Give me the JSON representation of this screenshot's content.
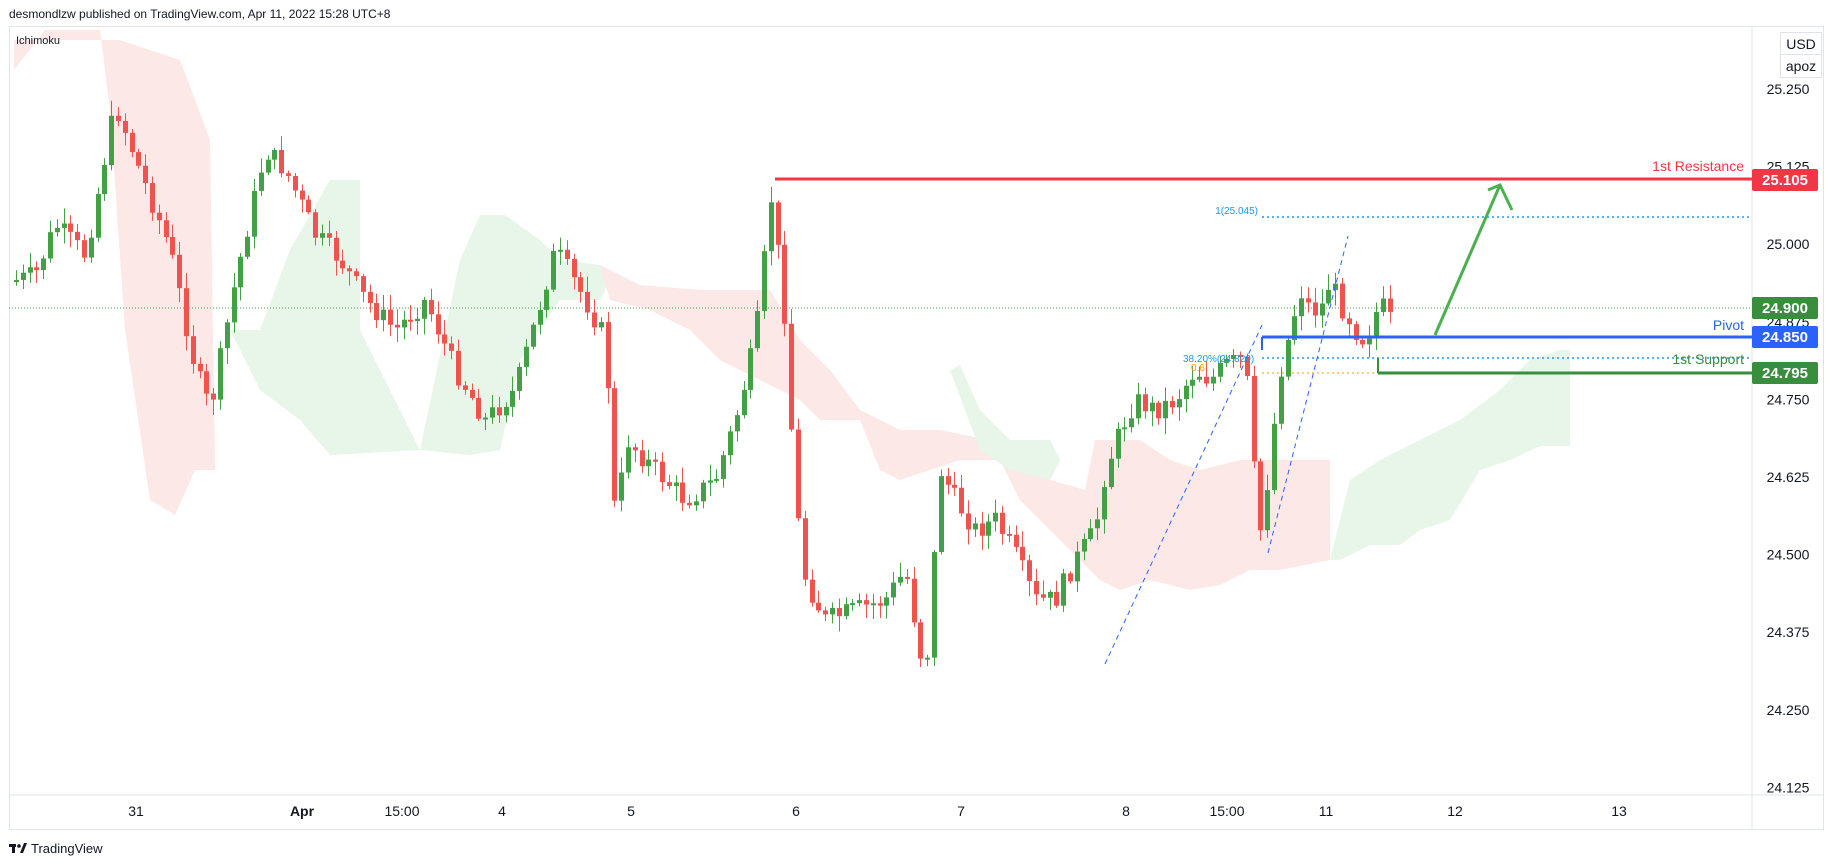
{
  "header": {
    "published_by": "desmondlzw published on TradingView.com, Apr 11, 2022 15:28 UTC+8"
  },
  "indicator": {
    "label": "Ichimoku"
  },
  "price_axis": {
    "currency": "USD",
    "unit": "apoz",
    "ticks": [
      "25.250",
      "25.125",
      "25.000",
      "24.875",
      "24.750",
      "24.625",
      "24.500",
      "24.375",
      "24.250",
      "24.125"
    ]
  },
  "time_axis": {
    "ticks": [
      "31",
      "Apr",
      "15:00",
      "4",
      "5",
      "6",
      "7",
      "8",
      "15:00",
      "11",
      "12",
      "13"
    ]
  },
  "levels": [
    {
      "name": "1st Resistance",
      "value": "25.105",
      "color": "#f23645"
    },
    {
      "name": "Pivot",
      "value": "24.850",
      "color": "#2962ff"
    },
    {
      "name": "1st Support",
      "value": "24.795",
      "color": "#388e3c"
    }
  ],
  "last_price": {
    "value": "24.900",
    "color": "#388e3c"
  },
  "fib_labels": {
    "top": "1(25.045)",
    "mid": "38.20%(24.820)",
    "low": "0.6"
  },
  "footer": {
    "brand": "TradingView"
  },
  "colors": {
    "up": "#43a047",
    "down": "#ef5350",
    "cloud_green": "#e8f5e9",
    "cloud_red": "#fde8e8",
    "arrow": "#4caf50"
  }
}
